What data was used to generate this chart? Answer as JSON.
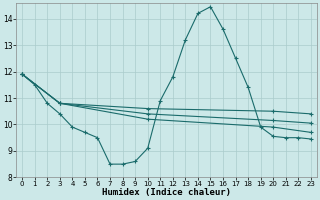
{
  "xlabel": "Humidex (Indice chaleur)",
  "bg_color": "#cce8e8",
  "grid_color": "#aacccc",
  "line_color": "#1a6b6b",
  "xlim": [
    -0.5,
    23.5
  ],
  "ylim": [
    8,
    14.6
  ],
  "yticks": [
    8,
    9,
    10,
    11,
    12,
    13,
    14
  ],
  "xticks": [
    0,
    1,
    2,
    3,
    4,
    5,
    6,
    7,
    8,
    9,
    10,
    11,
    12,
    13,
    14,
    15,
    16,
    17,
    18,
    19,
    20,
    21,
    22,
    23
  ],
  "series1": [
    [
      0,
      11.9
    ],
    [
      1,
      11.5
    ],
    [
      2,
      10.8
    ],
    [
      3,
      10.4
    ],
    [
      4,
      9.9
    ],
    [
      5,
      9.7
    ],
    [
      6,
      9.5
    ],
    [
      7,
      8.5
    ],
    [
      8,
      8.5
    ],
    [
      9,
      8.6
    ],
    [
      10,
      9.1
    ],
    [
      11,
      10.9
    ],
    [
      12,
      11.8
    ],
    [
      13,
      13.2
    ],
    [
      14,
      14.2
    ],
    [
      15,
      14.45
    ],
    [
      16,
      13.6
    ],
    [
      17,
      12.5
    ],
    [
      18,
      11.4
    ],
    [
      19,
      9.9
    ],
    [
      20,
      9.55
    ],
    [
      21,
      9.5
    ],
    [
      22,
      9.5
    ],
    [
      23,
      9.45
    ]
  ],
  "series2": [
    [
      0,
      11.9
    ],
    [
      3,
      10.8
    ],
    [
      10,
      10.6
    ],
    [
      20,
      10.5
    ],
    [
      23,
      10.4
    ]
  ],
  "series3": [
    [
      0,
      11.9
    ],
    [
      3,
      10.8
    ],
    [
      10,
      10.4
    ],
    [
      20,
      10.15
    ],
    [
      23,
      10.05
    ]
  ],
  "series4": [
    [
      0,
      11.9
    ],
    [
      3,
      10.8
    ],
    [
      10,
      10.2
    ],
    [
      20,
      9.9
    ],
    [
      23,
      9.7
    ]
  ]
}
